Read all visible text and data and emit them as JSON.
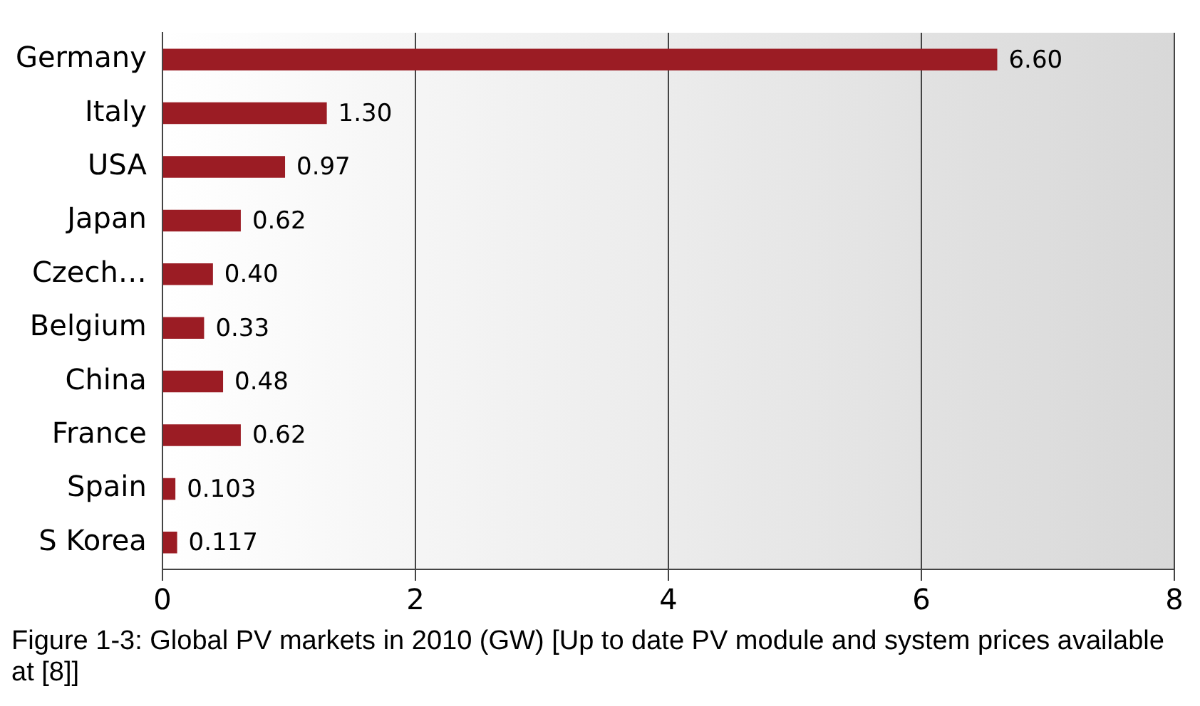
{
  "chart_data": {
    "type": "bar",
    "orientation": "horizontal",
    "categories": [
      "Germany",
      "Italy",
      "USA",
      "Japan",
      "Czech…",
      "Belgium",
      "China",
      "France",
      "Spain",
      "S Korea"
    ],
    "values": [
      6.6,
      1.3,
      0.97,
      0.62,
      0.4,
      0.33,
      0.48,
      0.62,
      0.103,
      0.117
    ],
    "value_labels": [
      "6.60",
      "1.30",
      "0.97",
      "0.62",
      "0.40",
      "0.33",
      "0.48",
      "0.62",
      "0.103",
      "0.117"
    ],
    "color": "#9b1c24",
    "xlim": [
      0,
      8
    ],
    "xticks": [
      0,
      2,
      4,
      6,
      8
    ],
    "grid": "x",
    "legend": false,
    "annotations": [
      "Figure 1-3: Global PV markets in 2010 (GW) [Up to date PV module and system prices available at [8]]"
    ]
  }
}
